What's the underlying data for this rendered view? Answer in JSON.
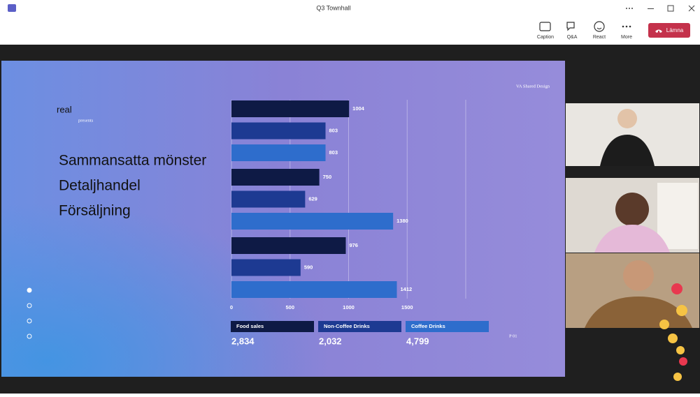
{
  "window": {
    "title": "Q3 Townhall"
  },
  "toolbar": {
    "buttons": [
      "Caption",
      "Q&A",
      "React",
      "More"
    ],
    "leave": "Lämna"
  },
  "slide": {
    "brand": "VA Shared Design",
    "logo": "real",
    "logo_sub": "presents",
    "headings": [
      "Sammansatta mönster",
      "Detaljhandel",
      "Försäljning"
    ],
    "page": "P 01",
    "totals": [
      "2,834",
      "2,032",
      "4,799"
    ]
  },
  "chart_data": {
    "type": "bar",
    "orientation": "horizontal",
    "categories": [
      null,
      null,
      null
    ],
    "series": [
      {
        "name": "Food sales",
        "color": "#0e1a45",
        "values": [
          1004,
          750,
          976
        ]
      },
      {
        "name": "Non-Coffee Drinks",
        "color": "#1d3a92",
        "values": [
          803,
          629,
          590
        ]
      },
      {
        "name": "Coffee Drinks",
        "color": "#2e6dcc",
        "values": [
          803,
          1380,
          1412
        ]
      }
    ],
    "xlim": [
      0,
      2000
    ],
    "xticks": [
      0,
      500,
      1000,
      1500
    ],
    "grid": true
  }
}
